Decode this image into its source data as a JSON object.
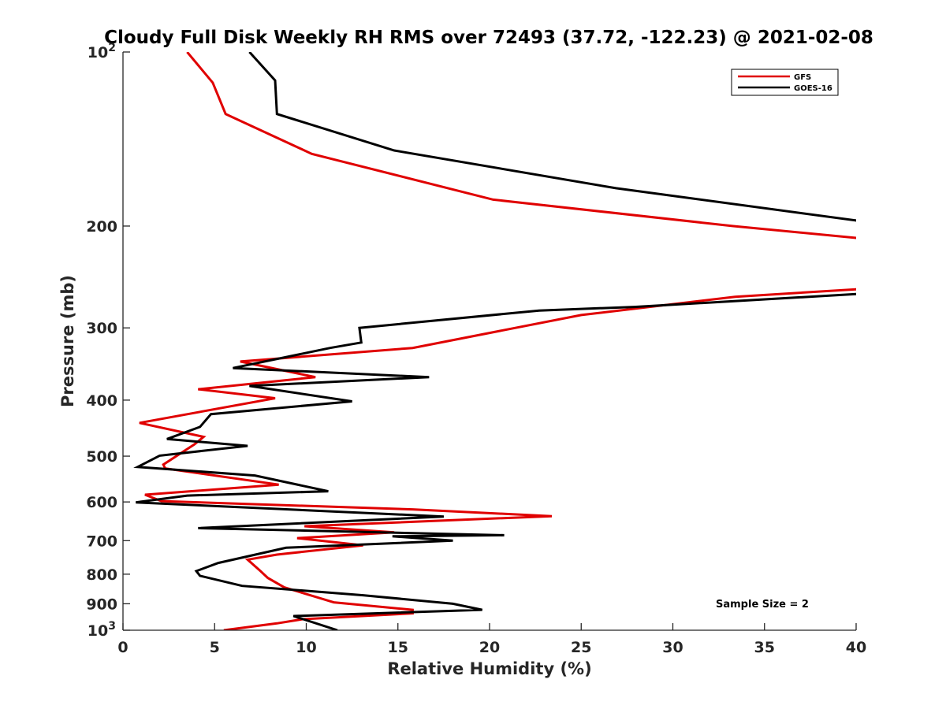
{
  "chart_data": {
    "type": "line",
    "title": "Cloudy Full Disk Weekly RH RMS over 72493 (37.72, -122.23) @ 2021-02-08",
    "xlabel": "Relative Humidity (%)",
    "ylabel": "Pressure (mb)",
    "xlim": [
      0,
      40
    ],
    "ylim": [
      100,
      1000
    ],
    "yscale": "log",
    "y_reversed": true,
    "x_ticks": [
      {
        "value": 0,
        "label": "0"
      },
      {
        "value": 5,
        "label": "5"
      },
      {
        "value": 10,
        "label": "10"
      },
      {
        "value": 15,
        "label": "15"
      },
      {
        "value": 20,
        "label": "20"
      },
      {
        "value": 25,
        "label": "25"
      },
      {
        "value": 30,
        "label": "30"
      },
      {
        "value": 35,
        "label": "35"
      },
      {
        "value": 40,
        "label": "40"
      }
    ],
    "y_ticks": [
      {
        "value": 100,
        "label": "10",
        "sup": "2"
      },
      {
        "value": 200,
        "label": "200"
      },
      {
        "value": 300,
        "label": "300"
      },
      {
        "value": 400,
        "label": "400"
      },
      {
        "value": 500,
        "label": "500"
      },
      {
        "value": 600,
        "label": "600"
      },
      {
        "value": 700,
        "label": "700"
      },
      {
        "value": 800,
        "label": "800"
      },
      {
        "value": 900,
        "label": "900"
      },
      {
        "value": 1000,
        "label": "10",
        "sup": "3"
      }
    ],
    "grid": false,
    "legend_position": "top-right",
    "annotation": "Sample Size = 2",
    "series": [
      {
        "name": "GFS",
        "color": "#e00000",
        "points": [
          [
            3.5,
            100
          ],
          [
            4.9,
            113
          ],
          [
            5.6,
            128
          ],
          [
            10.3,
            150
          ],
          [
            20.2,
            180
          ],
          [
            33.3,
            200
          ],
          [
            40.2,
            210
          ],
          [
            40.2,
            257
          ],
          [
            33.4,
            265
          ],
          [
            25.0,
            285
          ],
          [
            15.8,
            325
          ],
          [
            6.4,
            343
          ],
          [
            10.5,
            365
          ],
          [
            4.1,
            383
          ],
          [
            8.3,
            397
          ],
          [
            0.9,
            438
          ],
          [
            4.4,
            463
          ],
          [
            3.9,
            477
          ],
          [
            2.2,
            517
          ],
          [
            2.3,
            525
          ],
          [
            8.5,
            560
          ],
          [
            1.2,
            583
          ],
          [
            2.1,
            598
          ],
          [
            15.8,
            618
          ],
          [
            23.4,
            635
          ],
          [
            9.9,
            661
          ],
          [
            14.8,
            677
          ],
          [
            9.5,
            693
          ],
          [
            13.1,
            713
          ],
          [
            8.4,
            740
          ],
          [
            6.8,
            755
          ],
          [
            7.5,
            790
          ],
          [
            7.9,
            812
          ],
          [
            8.8,
            843
          ],
          [
            11.5,
            895
          ],
          [
            15.8,
            922
          ],
          [
            15.8,
            935
          ],
          [
            9.8,
            957
          ],
          [
            8.4,
            973
          ],
          [
            5.5,
            1000
          ]
        ]
      },
      {
        "name": "GOES-16",
        "color": "#000000",
        "points": [
          [
            6.9,
            100
          ],
          [
            8.3,
            112
          ],
          [
            8.4,
            128
          ],
          [
            14.8,
            148
          ],
          [
            26.9,
            172
          ],
          [
            40.2,
            196
          ],
          [
            40.2,
            262
          ],
          [
            27.9,
            276
          ],
          [
            22.7,
            280
          ],
          [
            12.9,
            300
          ],
          [
            13.0,
            318
          ],
          [
            11.3,
            325
          ],
          [
            6.0,
            352
          ],
          [
            16.7,
            365
          ],
          [
            6.9,
            378
          ],
          [
            12.5,
            402
          ],
          [
            4.8,
            423
          ],
          [
            4.2,
            445
          ],
          [
            2.4,
            467
          ],
          [
            6.8,
            480
          ],
          [
            2.0,
            499
          ],
          [
            0.8,
            522
          ],
          [
            7.2,
            540
          ],
          [
            11.2,
            575
          ],
          [
            3.5,
            585
          ],
          [
            0.7,
            601
          ],
          [
            17.5,
            636
          ],
          [
            4.1,
            666
          ],
          [
            20.8,
            685
          ],
          [
            14.7,
            688
          ],
          [
            18.0,
            700
          ],
          [
            8.9,
            720
          ],
          [
            5.2,
            765
          ],
          [
            4.0,
            790
          ],
          [
            4.2,
            805
          ],
          [
            6.5,
            838
          ],
          [
            13.1,
            870
          ],
          [
            18.0,
            900
          ],
          [
            19.6,
            922
          ],
          [
            9.3,
            945
          ],
          [
            11.7,
            1000
          ]
        ]
      }
    ]
  }
}
